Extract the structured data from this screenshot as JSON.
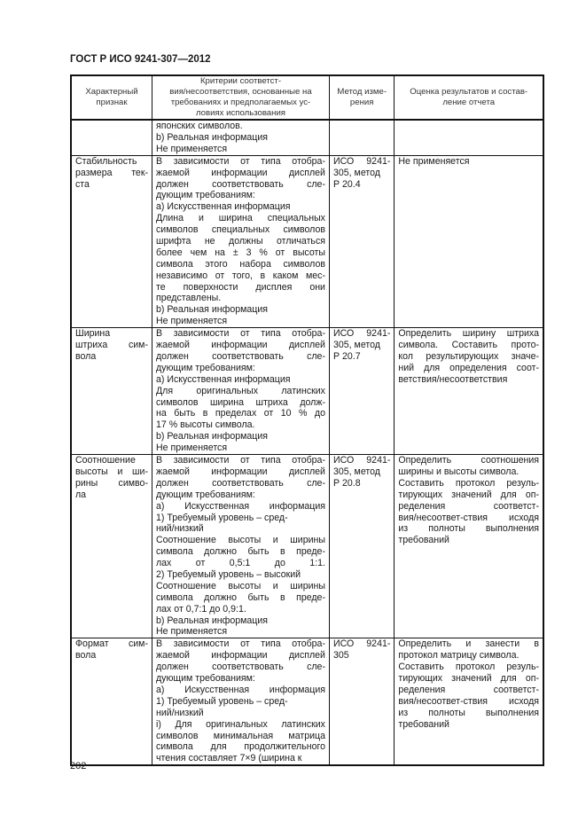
{
  "header": {
    "title": "ГОСТ Р ИСО 9241-307—2012"
  },
  "table": {
    "columns": [
      "Характерный признак",
      "Критерии соответст-вия/несоответствия, основанные на требованиях и предполагаемых ус-ловиях использования",
      "Метод изме-рения",
      "Оценка результатов и состав-ление отчета"
    ],
    "column_lines": [
      [
        "Характерный",
        "признак"
      ],
      [
        "Критерии соответст-",
        "вия/несоответствия, основанные на",
        "требованиях и предполагаемых ус-",
        "ловиях использования"
      ],
      [
        "Метод изме-",
        "рения"
      ],
      [
        "Оценка результатов и состав-",
        "ление отчета"
      ]
    ],
    "rows": [
      {
        "feature": [],
        "criteria": [
          "японских символов.",
          "b) Реальная информация",
          "Не применяется"
        ],
        "method": [],
        "evaluation": []
      },
      {
        "feature": [
          "Стабильность",
          "размера тек-",
          "ста"
        ],
        "criteria": [
          "В зависимости от типа отобра-",
          "жаемой информации дисплей",
          "должен соответствовать сле-",
          "дующим требованиям:",
          "a) Искусственная информация",
          "Длина и ширина специальных",
          "символов специальных символов",
          "шрифта не должны отличаться",
          "более чем на ± 3 % от высоты",
          "символа этого набора символов",
          "независимо от того, в каком мес-",
          "те поверхности дисплея они",
          "представлены.",
          "b) Реальная информация",
          "Не применяется"
        ],
        "method": [
          "ИСО 9241-",
          "305, метод",
          "Р 20.4"
        ],
        "evaluation": [
          "Не применяется"
        ]
      },
      {
        "feature": [
          "Ширина",
          "штриха сим-",
          "вола"
        ],
        "criteria": [
          "В зависимости от типа отобра-",
          "жаемой информации дисплей",
          "должен соответствовать сле-",
          "дующим требованиям:",
          "a) Искусственная информация",
          "Для оригинальных латинских",
          "символов ширина штриха долж-",
          "на быть в пределах от 10 % до",
          "17 % высоты символа.",
          "b) Реальная информация",
          "Не применяется"
        ],
        "method": [
          "ИСО 9241-",
          "305, метод",
          "Р 20.7"
        ],
        "evaluation": [
          "Определить ширину штриха",
          "символа. Составить прото-",
          "кол результирующих значе-",
          "ний для определения соот-",
          "ветствия/несоответствия"
        ]
      },
      {
        "feature": [
          "Соотношение",
          "высоты и ши-",
          "рины симво-",
          "ла"
        ],
        "criteria": [
          "В зависимости от типа отобра-",
          "жаемой информации дисплей",
          "должен соответствовать сле-",
          "дующим требованиям:",
          "a) Искусственная информация",
          "1) Требуемый уровень – сред-",
          "ний/низкий",
          "Соотношение высоты и ширины",
          "символа должно быть в преде-",
          "лах от 0,5:1 до 1:1.",
          "2) Требуемый уровень – высокий",
          "Соотношение высоты и ширины",
          "символа должно быть в преде-",
          "лах от 0,7:1 до 0,9:1.",
          "b) Реальная информация",
          "Не применяется"
        ],
        "method": [
          "ИСО 9241-",
          "305, метод",
          "Р 20.8"
        ],
        "evaluation": [
          "Определить соотношения",
          "ширины и высоты символа.",
          "Составить протокол резуль-",
          "тирующих значений для оп-",
          "ределения соответст-",
          "вия/несоответ-ствия исходя",
          "из полноты выполнения",
          "требований"
        ]
      },
      {
        "feature": [
          "Формат сим-",
          "вола"
        ],
        "criteria": [
          "В зависимости от типа отобра-",
          "жаемой информации дисплей",
          "должен соответствовать сле-",
          "дующим требованиям:",
          "a) Искусственная информация",
          "1) Требуемый уровень – сред-",
          "ний/низкий",
          "i) Для оригинальных латинских",
          "символов минимальная матрица",
          "символа для продолжительного",
          "чтения составляет 7×9 (ширина к"
        ],
        "method": [
          "ИСО 9241-",
          "305"
        ],
        "evaluation": [
          "Определить и занести в",
          "протокол матрицу символа.",
          "Составить протокол резуль-",
          "тирующих значений для оп-",
          "ределения соответст-",
          "вия/несоответ-ствия исходя",
          "из полноты выполнения",
          "требований"
        ]
      }
    ]
  },
  "footer": {
    "page_number": "202"
  }
}
